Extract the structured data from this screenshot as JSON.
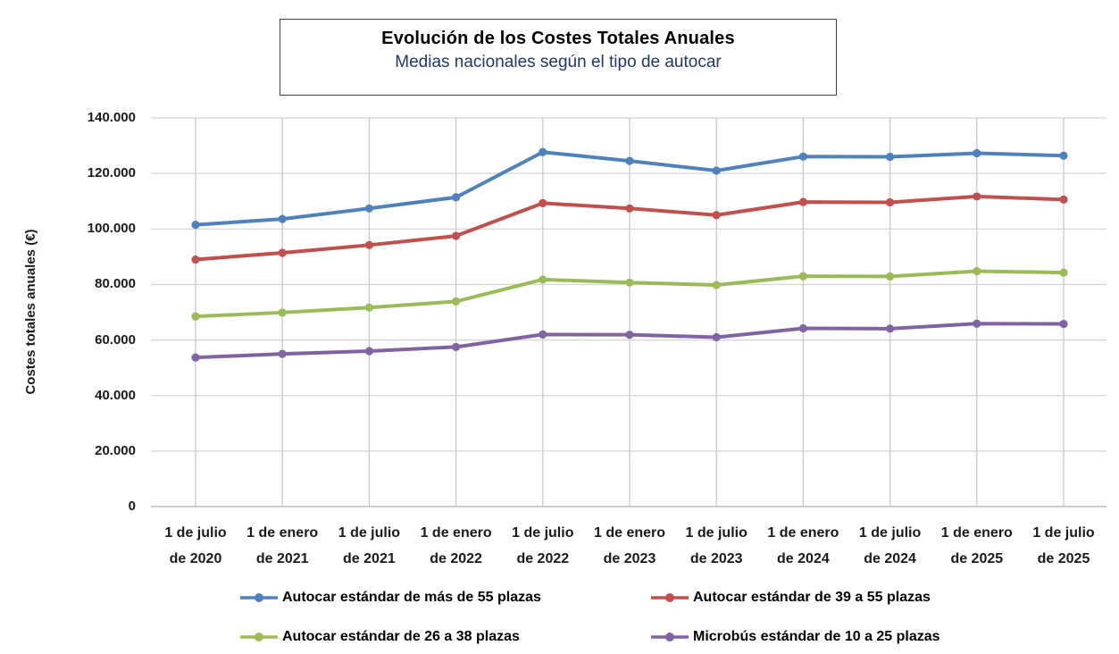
{
  "chart_data": {
    "type": "line",
    "title": "Evolución de los Costes Totales Anuales",
    "subtitle": "Medias nacionales según el tipo de autocar",
    "ylabel": "Costes totales anuales (€)",
    "xlabel": "",
    "ylim": [
      0,
      140000
    ],
    "grid": true,
    "legend_position": "bottom",
    "y_ticks": [
      {
        "value": 0,
        "label": "0"
      },
      {
        "value": 20000,
        "label": "20.000"
      },
      {
        "value": 40000,
        "label": "40.000"
      },
      {
        "value": 60000,
        "label": "60.000"
      },
      {
        "value": 80000,
        "label": "80.000"
      },
      {
        "value": 100000,
        "label": "100.000"
      },
      {
        "value": 120000,
        "label": "120.000"
      },
      {
        "value": 140000,
        "label": "140.000"
      }
    ],
    "categories": [
      "1 de julio de 2020",
      "1 de enero de 2021",
      "1 de julio de 2021",
      "1 de enero de 2022",
      "1 de julio de 2022",
      "1 de enero de 2023",
      "1 de julio de 2023",
      "1 de enero de 2024",
      "1 de julio de 2024",
      "1 de enero de 2025",
      "1 de julio de 2025"
    ],
    "categories_two_line": [
      [
        "1 de julio",
        "de 2020"
      ],
      [
        "1 de enero",
        "de 2021"
      ],
      [
        "1 de julio",
        "de 2021"
      ],
      [
        "1 de enero",
        "de 2022"
      ],
      [
        "1 de julio",
        "de 2022"
      ],
      [
        "1 de enero",
        "de 2023"
      ],
      [
        "1 de julio",
        "de 2023"
      ],
      [
        "1 de enero",
        "de 2024"
      ],
      [
        "1 de julio",
        "de 2024"
      ],
      [
        "1 de enero",
        "de 2025"
      ],
      [
        "1 de julio",
        "de 2025"
      ]
    ],
    "series": [
      {
        "name": "Autocar estándar de más de 55 plazas",
        "color": "#4F81BD",
        "values": [
          101500,
          103600,
          107400,
          111400,
          127700,
          124500,
          121000,
          126100,
          126000,
          127300,
          126400
        ]
      },
      {
        "name": "Autocar estándar de 39 a 55 plazas",
        "color": "#C0504D",
        "values": [
          89000,
          91400,
          94200,
          97500,
          109300,
          107400,
          105000,
          109700,
          109600,
          111700,
          110600
        ]
      },
      {
        "name": "Autocar estándar de 26 a 38 plazas",
        "color": "#9BBB59",
        "values": [
          68500,
          69900,
          71700,
          73900,
          81800,
          80700,
          79800,
          83000,
          82900,
          84800,
          84300
        ]
      },
      {
        "name": "Microbús estándar de 10 a 25 plazas",
        "color": "#8064A2",
        "values": [
          53700,
          55000,
          56000,
          57500,
          62000,
          61900,
          61000,
          64200,
          64100,
          65900,
          65800
        ]
      }
    ],
    "grid_colors": {
      "horizontal": "#D6D6D6",
      "vertical": "#C9C9C9",
      "zero_line": "#ABABAB"
    }
  }
}
